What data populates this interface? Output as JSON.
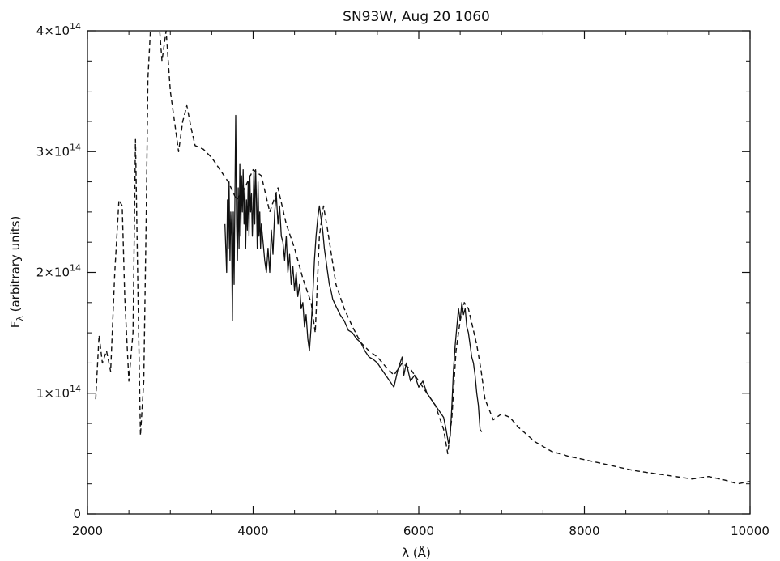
{
  "chart_data": {
    "type": "line",
    "title": "SN93W, Aug 20 1060",
    "xlabel": "λ (Å)",
    "ylabel": "F",
    "ylabel_subscript": "λ",
    "ylabel_suffix": " (arbitrary units)",
    "xlim": [
      2000,
      10000
    ],
    "ylim": [
      0,
      400000000000000.0
    ],
    "x_ticks": [
      {
        "value": 2000,
        "label": "2000"
      },
      {
        "value": 4000,
        "label": "4000"
      },
      {
        "value": 6000,
        "label": "6000"
      },
      {
        "value": 8000,
        "label": "8000"
      },
      {
        "value": 10000,
        "label": "10000"
      }
    ],
    "y_ticks": [
      {
        "value": 0,
        "label": "0",
        "exp": ""
      },
      {
        "value": 100000000000000.0,
        "label": "1×10",
        "exp": "14"
      },
      {
        "value": 200000000000000.0,
        "label": "2×10",
        "exp": "14"
      },
      {
        "value": 300000000000000.0,
        "label": "3×10",
        "exp": "14"
      },
      {
        "value": 400000000000000.0,
        "label": "4×10",
        "exp": "14"
      }
    ],
    "grid": false,
    "series": [
      {
        "style": "dashed",
        "x": [
          2100,
          2140,
          2180,
          2230,
          2280,
          2330,
          2380,
          2420,
          2450,
          2500,
          2550,
          2580,
          2610,
          2640,
          2680,
          2710,
          2730,
          2760,
          2800,
          2850,
          2900,
          2950,
          3000,
          3050,
          3100,
          3150,
          3200,
          3250,
          3300,
          3400,
          3500,
          3600,
          3700,
          3800,
          3900,
          4000,
          4100,
          4200,
          4300,
          4400,
          4500,
          4600,
          4700,
          4750,
          4800,
          4850,
          4900,
          5000,
          5100,
          5200,
          5300,
          5400,
          5500,
          5600,
          5700,
          5800,
          5900,
          6000,
          6100,
          6200,
          6300,
          6350,
          6400,
          6450,
          6500,
          6550,
          6600,
          6650,
          6700,
          6750,
          6800,
          6900,
          7000,
          7100,
          7200,
          7400,
          7600,
          7800,
          8000,
          8200,
          8400,
          8600,
          8800,
          9000,
          9200,
          9300,
          9500,
          9700,
          9850,
          10000
        ],
        "y": [
          95000000000000.0,
          148000000000000.0,
          125000000000000.0,
          135000000000000.0,
          118000000000000.0,
          200000000000000.0,
          260000000000000.0,
          255000000000000.0,
          180000000000000.0,
          110000000000000.0,
          150000000000000.0,
          310000000000000.0,
          180000000000000.0,
          65000000000000.0,
          110000000000000.0,
          250000000000000.0,
          360000000000000.0,
          400000000000000.0,
          410000000000000.0,
          420000000000000.0,
          375000000000000.0,
          400000000000000.0,
          350000000000000.0,
          325000000000000.0,
          300000000000000.0,
          325000000000000.0,
          338000000000000.0,
          320000000000000.0,
          305000000000000.0,
          302000000000000.0,
          295000000000000.0,
          285000000000000.0,
          275000000000000.0,
          260000000000000.0,
          270000000000000.0,
          285000000000000.0,
          280000000000000.0,
          250000000000000.0,
          270000000000000.0,
          240000000000000.0,
          220000000000000.0,
          195000000000000.0,
          175000000000000.0,
          150000000000000.0,
          230000000000000.0,
          255000000000000.0,
          235000000000000.0,
          190000000000000.0,
          170000000000000.0,
          155000000000000.0,
          142000000000000.0,
          135000000000000.0,
          130000000000000.0,
          122000000000000.0,
          115000000000000.0,
          125000000000000.0,
          120000000000000.0,
          110000000000000.0,
          100000000000000.0,
          90000000000000.0,
          70000000000000.0,
          50000000000000.0,
          80000000000000.0,
          135000000000000.0,
          160000000000000.0,
          175000000000000.0,
          170000000000000.0,
          155000000000000.0,
          140000000000000.0,
          120000000000000.0,
          95000000000000.0,
          78000000000000.0,
          83000000000000.0,
          80000000000000.0,
          72000000000000.0,
          60000000000000.0,
          52000000000000.0,
          48000000000000.0,
          45000000000000.0,
          42000000000000.0,
          39000000000000.0,
          36000000000000.0,
          34000000000000.0,
          32000000000000.0,
          30000000000000.0,
          29000000000000.0,
          31000000000000.0,
          28000000000000.0,
          25000000000000.0,
          27000000000000.0
        ]
      },
      {
        "style": "solid",
        "x": [
          3660,
          3680,
          3690,
          3700,
          3710,
          3720,
          3730,
          3740,
          3750,
          3760,
          3770,
          3780,
          3790,
          3800,
          3810,
          3820,
          3830,
          3840,
          3850,
          3860,
          3870,
          3880,
          3890,
          3900,
          3910,
          3920,
          3930,
          3940,
          3950,
          3960,
          3970,
          3980,
          3990,
          4000,
          4010,
          4020,
          4030,
          4040,
          4050,
          4060,
          4070,
          4080,
          4090,
          4100,
          4120,
          4140,
          4160,
          4180,
          4200,
          4220,
          4240,
          4260,
          4280,
          4300,
          4320,
          4340,
          4360,
          4380,
          4400,
          4420,
          4440,
          4460,
          4480,
          4500,
          4520,
          4540,
          4560,
          4580,
          4600,
          4620,
          4640,
          4660,
          4680,
          4700,
          4720,
          4740,
          4760,
          4780,
          4800,
          4820,
          4840,
          4860,
          4880,
          4900,
          4920,
          4940,
          4960,
          4980,
          5000,
          5050,
          5100,
          5150,
          5200,
          5250,
          5300,
          5350,
          5400,
          5450,
          5500,
          5550,
          5600,
          5650,
          5700,
          5750,
          5800,
          5820,
          5850,
          5900,
          5950,
          6000,
          6050,
          6100,
          6150,
          6200,
          6250,
          6300,
          6330,
          6360,
          6380,
          6400,
          6420,
          6440,
          6460,
          6480,
          6500,
          6520,
          6540,
          6560,
          6580,
          6600,
          6620,
          6640,
          6660,
          6680,
          6700,
          6720,
          6740,
          6760
        ],
        "y": [
          240000000000000.0,
          200000000000000.0,
          260000000000000.0,
          220000000000000.0,
          275000000000000.0,
          210000000000000.0,
          250000000000000.0,
          230000000000000.0,
          160000000000000.0,
          250000000000000.0,
          190000000000000.0,
          260000000000000.0,
          330000000000000.0,
          240000000000000.0,
          210000000000000.0,
          270000000000000.0,
          220000000000000.0,
          290000000000000.0,
          230000000000000.0,
          280000000000000.0,
          250000000000000.0,
          285000000000000.0,
          240000000000000.0,
          270000000000000.0,
          220000000000000.0,
          260000000000000.0,
          235000000000000.0,
          275000000000000.0,
          230000000000000.0,
          280000000000000.0,
          250000000000000.0,
          265000000000000.0,
          230000000000000.0,
          255000000000000.0,
          285000000000000.0,
          240000000000000.0,
          285000000000000.0,
          260000000000000.0,
          220000000000000.0,
          275000000000000.0,
          230000000000000.0,
          250000000000000.0,
          220000000000000.0,
          240000000000000.0,
          225000000000000.0,
          210000000000000.0,
          200000000000000.0,
          220000000000000.0,
          200000000000000.0,
          235000000000000.0,
          215000000000000.0,
          250000000000000.0,
          265000000000000.0,
          240000000000000.0,
          255000000000000.0,
          230000000000000.0,
          225000000000000.0,
          210000000000000.0,
          230000000000000.0,
          200000000000000.0,
          215000000000000.0,
          190000000000000.0,
          205000000000000.0,
          185000000000000.0,
          200000000000000.0,
          180000000000000.0,
          190000000000000.0,
          170000000000000.0,
          175000000000000.0,
          155000000000000.0,
          165000000000000.0,
          145000000000000.0,
          135000000000000.0,
          155000000000000.0,
          180000000000000.0,
          210000000000000.0,
          230000000000000.0,
          245000000000000.0,
          255000000000000.0,
          245000000000000.0,
          235000000000000.0,
          220000000000000.0,
          210000000000000.0,
          200000000000000.0,
          190000000000000.0,
          185000000000000.0,
          178000000000000.0,
          175000000000000.0,
          172000000000000.0,
          165000000000000.0,
          160000000000000.0,
          152000000000000.0,
          150000000000000.0,
          145000000000000.0,
          142000000000000.0,
          135000000000000.0,
          130000000000000.0,
          128000000000000.0,
          125000000000000.0,
          120000000000000.0,
          115000000000000.0,
          110000000000000.0,
          105000000000000.0,
          120000000000000.0,
          130000000000000.0,
          115000000000000.0,
          125000000000000.0,
          110000000000000.0,
          115000000000000.0,
          105000000000000.0,
          110000000000000.0,
          100000000000000.0,
          95000000000000.0,
          90000000000000.0,
          85000000000000.0,
          80000000000000.0,
          70000000000000.0,
          58000000000000.0,
          65000000000000.0,
          90000000000000.0,
          120000000000000.0,
          140000000000000.0,
          155000000000000.0,
          170000000000000.0,
          160000000000000.0,
          175000000000000.0,
          165000000000000.0,
          170000000000000.0,
          155000000000000.0,
          150000000000000.0,
          140000000000000.0,
          130000000000000.0,
          125000000000000.0,
          115000000000000.0,
          100000000000000.0,
          90000000000000.0,
          70000000000000.0,
          68000000000000.0
        ]
      }
    ]
  }
}
